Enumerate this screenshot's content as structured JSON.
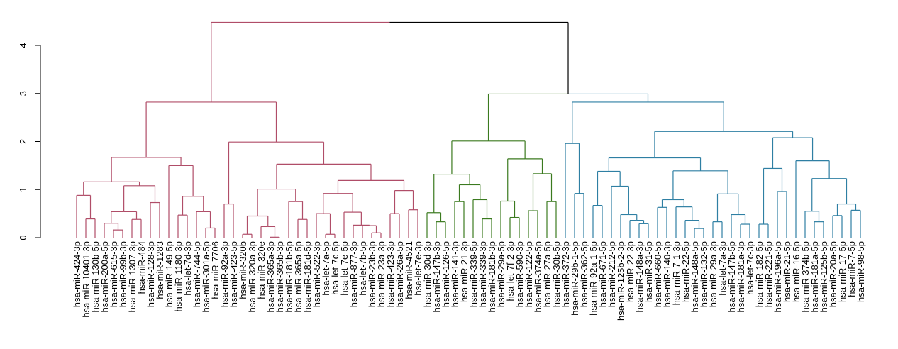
{
  "chart_data": {
    "type": "dendrogram",
    "title": "",
    "xlabel": "",
    "ylabel": "",
    "ylim": [
      0,
      4.5
    ],
    "y_ticks": [
      "0",
      "1",
      "2",
      "3",
      "4"
    ],
    "grid": false,
    "colors": {
      "cluster_1": "#b04d68",
      "cluster_2": "#3b7a1f",
      "cluster_3": "#2e7fa3",
      "unclustered": "#000000"
    },
    "tree": {
      "h": 4.48,
      "c": [
        {
          "h": 2.82,
          "color": "#b04d68",
          "c": [
            {
              "h": 1.67,
              "c": [
                {
                  "h": 1.16,
                  "c": [
                    {
                      "h": 0.88,
                      "c": [
                        "hsa-miR-424-3p",
                        {
                          "h": 0.39,
                          "c": [
                            "hsa-miR-10401-3p",
                            "hsa-miR-130b-5p"
                          ]
                        }
                      ]
                    },
                    {
                      "h": 1.08,
                      "c": [
                        {
                          "h": 0.54,
                          "c": [
                            {
                              "h": 0.3,
                              "c": [
                                "hsa-miR-200a-5p",
                                {
                                  "h": 0.16,
                                  "c": [
                                    "hsa-miR-615-3p",
                                    "hsa-miR-99b-3p"
                                  ]
                                }
                              ]
                            },
                            {
                              "h": 0.38,
                              "c": [
                                "hsa-miR-1307-3p",
                                "hsa-miR-484"
                              ]
                            }
                          ]
                        },
                        {
                          "h": 0.73,
                          "c": [
                            "hsa-miR-128-3p",
                            "hsa-miR-1283"
                          ]
                        }
                      ]
                    }
                  ]
                },
                {
                  "h": 1.5,
                  "c": [
                    "hsa-miR-149-5p",
                    {
                      "h": 0.86,
                      "c": [
                        {
                          "h": 0.47,
                          "c": [
                            "hsa-miR-1180-3p",
                            "hsa-let-7d-3p"
                          ]
                        },
                        {
                          "h": 0.54,
                          "c": [
                            "hsa-miR-744-5p",
                            {
                              "h": 0.2,
                              "c": [
                                "hsa-miR-301a-5p",
                                "hsa-miR-7706"
                              ]
                            }
                          ]
                        }
                      ]
                    }
                  ]
                }
              ]
            },
            {
              "h": 1.99,
              "c": [
                {
                  "h": 0.7,
                  "c": [
                    "hsa-miR-92a-3p",
                    "hsa-miR-423-5p"
                  ]
                },
                {
                  "h": 1.53,
                  "c": [
                    {
                      "h": 1.01,
                      "c": [
                        {
                          "h": 0.45,
                          "c": [
                            {
                              "h": 0.07,
                              "c": [
                                "hsa-miR-320b",
                                "hsa-miR-320a-3p"
                              ]
                            },
                            {
                              "h": 0.23,
                              "c": [
                                "hsa-miR-320e",
                                {
                                  "h": 0.01,
                                  "c": [
                                    "hsa-miR-365a-3p",
                                    "hsa-miR-365b-3p"
                                  ]
                                }
                              ]
                            }
                          ]
                        },
                        {
                          "h": 0.75,
                          "c": [
                            "hsa-miR-181b-5p",
                            {
                              "h": 0.38,
                              "c": [
                                "hsa-miR-365a-5p",
                                "hsa-miR-181d-5p"
                              ]
                            }
                          ]
                        }
                      ]
                    },
                    {
                      "h": 1.19,
                      "c": [
                        {
                          "h": 0.92,
                          "c": [
                            {
                              "h": 0.5,
                              "c": [
                                "hsa-miR-522-3p",
                                {
                                  "h": 0.07,
                                  "c": [
                                    "hsa-let-7a-5p",
                                    "hsa-let-7c-5p"
                                  ]
                                }
                              ]
                            },
                            {
                              "h": 0.53,
                              "c": [
                                "hsa-let-7e-5p",
                                {
                                  "h": 0.26,
                                  "c": [
                                    "hsa-miR-877-3p",
                                    {
                                      "h": 0.25,
                                      "c": [
                                        "hsa-let-7b-5p",
                                        {
                                          "h": 0.1,
                                          "c": [
                                            "hsa-miR-23b-3p",
                                            "hsa-miR-23a-3p"
                                          ]
                                        }
                                      ]
                                    }
                                  ]
                                }
                              ]
                            }
                          ]
                        },
                        {
                          "h": 0.98,
                          "c": [
                            {
                              "h": 0.5,
                              "c": [
                                "hsa-miR-423-3p",
                                "hsa-miR-26a-5p"
                              ]
                            },
                            {
                              "h": 0.58,
                              "c": [
                                "hsa-miR-4521",
                                "hsa-let-7e-3p"
                              ]
                            }
                          ]
                        }
                      ]
                    }
                  ]
                }
              ]
            }
          ]
        },
        {
          "h": 2.99,
          "c": [
            {
              "h": 2.01,
              "color": "#3b7a1f",
              "c": [
                {
                  "h": 1.32,
                  "c": [
                    {
                      "h": 0.52,
                      "c": [
                        "hsa-miR-30d-3p",
                        {
                          "h": 0.33,
                          "c": [
                            "hsa-miR-147b-3p",
                            "hsa-miR-126-5p"
                          ]
                        }
                      ]
                    },
                    {
                      "h": 1.1,
                      "c": [
                        {
                          "h": 0.75,
                          "c": [
                            "hsa-miR-141-3p",
                            "hsa-miR-21-3p"
                          ]
                        },
                        {
                          "h": 0.79,
                          "c": [
                            "hsa-miR-339-5p",
                            {
                              "h": 0.39,
                              "c": [
                                "hsa-miR-339-3p",
                                "hsa-miR-181b-3p"
                              ]
                            }
                          ]
                        }
                      ]
                    }
                  ]
                },
                {
                  "h": 1.64,
                  "c": [
                    {
                      "h": 0.76,
                      "c": [
                        "hsa-miR-29a-5p",
                        {
                          "h": 0.42,
                          "c": [
                            "hsa-let-7f-2-3p",
                            "hsa-miR-590-3p"
                          ]
                        }
                      ]
                    },
                    {
                      "h": 1.33,
                      "c": [
                        {
                          "h": 0.56,
                          "c": [
                            "hsa-miR-122-5p",
                            "hsa-miR-374a-5p"
                          ]
                        },
                        {
                          "h": 0.75,
                          "c": [
                            "hsa-miR-27a-5p",
                            "hsa-miR-30b-5p"
                          ]
                        }
                      ]
                    }
                  ]
                }
              ]
            },
            {
              "h": 2.82,
              "color": "#2e7fa3",
              "c": [
                {
                  "h": 1.96,
                  "c": [
                    "hsa-miR-372-3p",
                    {
                      "h": 0.92,
                      "c": [
                        "hsa-miR-29b-1-5p",
                        "hsa-miR-362-5p"
                      ]
                    }
                  ]
                },
                {
                  "h": 2.21,
                  "c": [
                    {
                      "h": 1.66,
                      "c": [
                        {
                          "h": 1.38,
                          "c": [
                            {
                              "h": 0.67,
                              "c": [
                                "hsa-miR-92a-1-5p",
                                "hsa-miR-671-5p"
                              ]
                            },
                            {
                              "h": 1.07,
                              "c": [
                                "hsa-miR-212-5p",
                                {
                                  "h": 0.48,
                                  "c": [
                                    "hsa-miR-125b-2-3p",
                                    {
                                      "h": 0.36,
                                      "c": [
                                        "hsa-miR-22-3p",
                                        {
                                          "h": 0.29,
                                          "c": [
                                            "hsa-miR-148a-3p",
                                            "hsa-miR-31-5p"
                                          ]
                                        }
                                      ]
                                    }
                                  ]
                                }
                              ]
                            }
                          ]
                        },
                        {
                          "h": 1.39,
                          "c": [
                            {
                              "h": 0.79,
                              "c": [
                                {
                                  "h": 0.63,
                                  "c": [
                                    "hsa-miR-660-5p",
                                    "hsa-miR-140-3p"
                                  ]
                                },
                                {
                                  "h": 0.64,
                                  "c": [
                                    "hsa-miR-7-1-3p",
                                    {
                                      "h": 0.36,
                                      "c": [
                                        "hsa-miR-22-5p",
                                        {
                                          "h": 0.19,
                                          "c": [
                                            "hsa-miR-148a-5p",
                                            "hsa-miR-132-5p"
                                          ]
                                        }
                                      ]
                                    }
                                  ]
                                }
                              ]
                            },
                            {
                              "h": 0.91,
                              "c": [
                                {
                                  "h": 0.33,
                                  "c": [
                                    "hsa-miR-29a-3p",
                                    "hsa-let-7a-3p"
                                  ]
                                },
                                {
                                  "h": 0.48,
                                  "c": [
                                    "hsa-miR-147b-5p",
                                    {
                                      "h": 0.28,
                                      "c": [
                                        "hsa-miR-181a-3p",
                                        "hsa-let-7c-3p"
                                      ]
                                    }
                                  ]
                                }
                              ]
                            }
                          ]
                        }
                      ]
                    },
                    {
                      "h": 2.08,
                      "c": [
                        {
                          "h": 1.44,
                          "c": [
                            {
                              "h": 0.28,
                              "c": [
                                "hsa-miR-182-5p",
                                "hsa-miR-221-5p"
                              ]
                            },
                            {
                              "h": 0.96,
                              "c": [
                                "hsa-miR-196a-5p",
                                "hsa-miR-21-5p"
                              ]
                            }
                          ]
                        },
                        {
                          "h": 1.6,
                          "c": [
                            "hsa-miR-16-5p",
                            {
                              "h": 1.23,
                              "c": [
                                {
                                  "h": 0.55,
                                  "c": [
                                    "hsa-miR-374b-5p",
                                    {
                                      "h": 0.33,
                                      "c": [
                                        "hsa-miR-181a-5p",
                                        "hsa-miR-125b-5p"
                                      ]
                                    }
                                  ]
                                },
                                {
                                  "h": 0.7,
                                  "c": [
                                    {
                                      "h": 0.46,
                                      "c": [
                                        "hsa-miR-20a-5p",
                                        "hsa-miR-17-5p"
                                      ]
                                    },
                                    {
                                      "h": 0.57,
                                      "c": [
                                        "hsa-miR-7-5p",
                                        "hsa-miR-98-5p"
                                      ]
                                    }
                                  ]
                                }
                              ]
                            }
                          ]
                        }
                      ]
                    }
                  ]
                }
              ]
            }
          ]
        }
      ]
    }
  }
}
